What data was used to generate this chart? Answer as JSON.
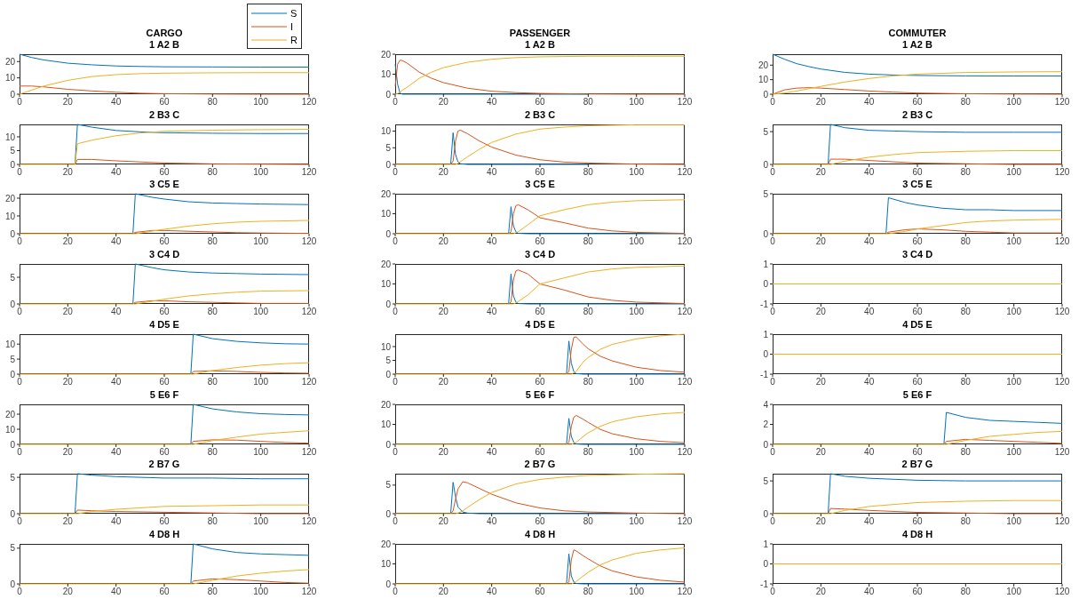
{
  "chart_data": [
    {
      "type": "line",
      "title": "CARGO",
      "subtitle": "1 A2 B",
      "legend": "top right",
      "x": [
        0,
        5,
        10,
        20,
        30,
        40,
        50,
        60,
        80,
        100,
        120
      ],
      "xlim": [
        0,
        120
      ],
      "xticks": [
        0,
        20,
        40,
        60,
        80,
        100,
        120
      ],
      "ylim": [
        0,
        24.5
      ],
      "yticks": [
        0,
        10,
        20
      ],
      "series": [
        {
          "name": "S",
          "color": "#0072bd",
          "values": [
            24.5,
            22.5,
            21,
            19,
            18,
            17.3,
            17,
            16.8,
            16.7,
            16.6,
            16.6
          ]
        },
        {
          "name": "I",
          "color": "#d95319",
          "values": [
            5,
            5,
            4.5,
            3,
            2,
            1.2,
            0.6,
            0.3,
            0.1,
            0,
            0
          ]
        },
        {
          "name": "R",
          "color": "#edb120",
          "values": [
            0,
            2.5,
            5,
            8.5,
            10.8,
            12,
            12.6,
            12.9,
            13.1,
            13.2,
            13.2
          ]
        }
      ]
    },
    {
      "type": "line",
      "title": "PASSENGER",
      "subtitle": "1 A2 B",
      "x": [
        0,
        1,
        2,
        3,
        5,
        10,
        15,
        20,
        30,
        40,
        50,
        60,
        80,
        100,
        120
      ],
      "xlim": [
        0,
        120
      ],
      "xticks": [
        0,
        20,
        40,
        60,
        80,
        100,
        120
      ],
      "ylim": [
        0,
        20
      ],
      "yticks": [
        0,
        10,
        20
      ],
      "series": [
        {
          "color": "#0072bd",
          "values": [
            15,
            5,
            0.5,
            0,
            0,
            0,
            0,
            0,
            0,
            0,
            0,
            0,
            0,
            null,
            null
          ]
        },
        {
          "color": "#d95319",
          "values": [
            4,
            15,
            17,
            16.8,
            15.5,
            11,
            8,
            5.8,
            3,
            1.5,
            0.8,
            0.4,
            0.1,
            0,
            0
          ]
        },
        {
          "color": "#edb120",
          "values": [
            0,
            0.3,
            1,
            2,
            3.5,
            8,
            11,
            13.3,
            16,
            17.5,
            18.3,
            18.7,
            19,
            19,
            19
          ]
        }
      ]
    },
    {
      "type": "line",
      "title": "COMMUTER",
      "subtitle": "1 A2 B",
      "x": [
        0,
        5,
        10,
        15,
        20,
        30,
        40,
        50,
        60,
        80,
        100,
        120
      ],
      "xlim": [
        0,
        120
      ],
      "xticks": [
        0,
        20,
        40,
        60,
        80,
        100,
        120
      ],
      "ylim": [
        0,
        27.5
      ],
      "yticks": [
        0,
        10,
        20
      ],
      "series": [
        {
          "color": "#0072bd",
          "values": [
            27.5,
            24,
            21,
            19,
            17.3,
            15,
            13.8,
            13.2,
            12.9,
            12.6,
            12.5,
            12.5
          ]
        },
        {
          "color": "#d95319",
          "values": [
            0,
            3,
            4.2,
            4.5,
            4.2,
            3.2,
            2.2,
            1.4,
            0.8,
            0.3,
            0.1,
            0
          ]
        },
        {
          "color": "#edb120",
          "values": [
            0,
            0.8,
            2.2,
            3.8,
            5.4,
            8.4,
            10.8,
            12.6,
            13.8,
            14.9,
            15.3,
            15.5
          ]
        }
      ]
    },
    {
      "type": "line",
      "title": "2 B3 C",
      "x": [
        0,
        23,
        24,
        30,
        40,
        50,
        60,
        80,
        100,
        120
      ],
      "xlim": [
        0,
        120
      ],
      "xticks": [
        0,
        20,
        40,
        60,
        80,
        100,
        120
      ],
      "ylim": [
        0,
        14.5
      ],
      "yticks": [
        0,
        5,
        10
      ],
      "series": [
        {
          "color": "#0072bd",
          "values": [
            null,
            0,
            14.5,
            13.5,
            12.3,
            11.8,
            11.5,
            11.3,
            11.2,
            11.2
          ]
        },
        {
          "color": "#d95319",
          "values": [
            null,
            0,
            1.8,
            1.8,
            1.3,
            0.9,
            0.5,
            0.2,
            0.1,
            0
          ]
        },
        {
          "color": "#edb120",
          "values": [
            0,
            0,
            7.5,
            8.8,
            10.4,
            11.4,
            12,
            12.4,
            12.6,
            12.7
          ]
        }
      ]
    },
    {
      "type": "line",
      "title": "2 B3 C",
      "x": [
        0,
        23,
        24,
        25,
        26,
        27,
        30,
        35,
        40,
        50,
        60,
        70,
        80,
        100,
        120
      ],
      "xlim": [
        0,
        120
      ],
      "xticks": [
        0,
        20,
        40,
        60,
        80,
        100,
        120
      ],
      "ylim": [
        0,
        12
      ],
      "yticks": [
        0,
        5,
        10
      ],
      "series": [
        {
          "color": "#0072bd",
          "values": [
            null,
            0,
            9.5,
            3,
            0.8,
            0.2,
            0,
            0,
            0,
            0,
            0,
            0,
            0,
            null,
            null
          ]
        },
        {
          "color": "#d95319",
          "values": [
            null,
            0,
            1,
            7,
            10,
            10.3,
            9.2,
            7,
            5.2,
            2.8,
            1.4,
            0.7,
            0.4,
            0.1,
            0
          ]
        },
        {
          "color": "#edb120",
          "values": [
            0,
            0,
            0,
            0,
            0.3,
            0.8,
            2.3,
            4.6,
            6.6,
            9.1,
            10.6,
            11.2,
            11.6,
            11.9,
            11.9
          ]
        }
      ]
    },
    {
      "type": "line",
      "title": "2 B3 C",
      "x": [
        0,
        23,
        24,
        30,
        40,
        50,
        60,
        80,
        100,
        120
      ],
      "xlim": [
        0,
        120
      ],
      "xticks": [
        0,
        20,
        40,
        60,
        80,
        100,
        120
      ],
      "ylim": [
        0,
        6.1
      ],
      "yticks": [
        0,
        5
      ],
      "series": [
        {
          "color": "#0072bd",
          "values": [
            null,
            0,
            6.1,
            5.6,
            5.2,
            5.1,
            5,
            4.9,
            4.9,
            4.9
          ]
        },
        {
          "color": "#d95319",
          "values": [
            null,
            0,
            0.8,
            0.8,
            0.6,
            0.4,
            0.2,
            0.1,
            0,
            0
          ]
        },
        {
          "color": "#edb120",
          "values": [
            0,
            0,
            0,
            0.5,
            1.1,
            1.5,
            1.8,
            2,
            2.1,
            2.1
          ]
        }
      ]
    },
    {
      "type": "line",
      "title": "3 C5 E",
      "x": [
        0,
        47,
        48,
        55,
        60,
        70,
        80,
        90,
        100,
        120
      ],
      "xlim": [
        0,
        120
      ],
      "xticks": [
        0,
        20,
        40,
        60,
        80,
        100,
        120
      ],
      "ylim": [
        0,
        22.5
      ],
      "yticks": [
        0,
        10,
        20
      ],
      "series": [
        {
          "color": "#0072bd",
          "values": [
            null,
            0,
            22.5,
            20.5,
            19.5,
            18,
            17.3,
            17,
            16.7,
            16.4
          ]
        },
        {
          "color": "#d95319",
          "values": [
            null,
            0,
            0.8,
            1.8,
            1.8,
            1.4,
            1,
            0.6,
            0.4,
            0.2
          ]
        },
        {
          "color": "#edb120",
          "values": [
            0,
            0,
            0,
            1.5,
            2.5,
            4.3,
            5.6,
            6.5,
            7,
            7.5
          ]
        }
      ]
    },
    {
      "type": "line",
      "title": "3 C5 E",
      "x": [
        0,
        47,
        48,
        49,
        50,
        51,
        55,
        60,
        70,
        80,
        90,
        100,
        120
      ],
      "xlim": [
        0,
        120
      ],
      "xticks": [
        0,
        20,
        40,
        60,
        80,
        100,
        120
      ],
      "ylim": [
        0,
        20
      ],
      "yticks": [
        0,
        10,
        20
      ],
      "series": [
        {
          "color": "#0072bd",
          "values": [
            null,
            0,
            13.5,
            4,
            1,
            0.2,
            0,
            0,
            0,
            0,
            0,
            0,
            0
          ]
        },
        {
          "color": "#d95319",
          "values": [
            null,
            0,
            1,
            10,
            14,
            14.5,
            12,
            8,
            5.5,
            2.8,
            1.4,
            0.7,
            0.2
          ]
        },
        {
          "color": "#edb120",
          "values": [
            0,
            0,
            0,
            0,
            0.5,
            1,
            4.5,
            9,
            12,
            14.5,
            15.8,
            16.5,
            17
          ]
        }
      ]
    },
    {
      "type": "line",
      "title": "3 C5 E",
      "x": [
        0,
        47,
        48,
        55,
        60,
        70,
        80,
        90,
        100,
        120
      ],
      "xlim": [
        0,
        120
      ],
      "xticks": [
        0,
        20,
        40,
        60,
        80,
        100,
        120
      ],
      "ylim": [
        0,
        5
      ],
      "yticks": [
        0,
        5
      ],
      "series": [
        {
          "color": "#0072bd",
          "values": [
            null,
            0,
            4.5,
            3.9,
            3.6,
            3.2,
            3,
            3,
            2.9,
            2.9
          ]
        },
        {
          "color": "#d95319",
          "values": [
            null,
            0,
            0.2,
            0.5,
            0.6,
            0.5,
            0.3,
            0.2,
            0.1,
            0.1
          ]
        },
        {
          "color": "#edb120",
          "values": [
            0,
            0,
            0,
            0.3,
            0.6,
            1,
            1.4,
            1.6,
            1.7,
            1.8
          ]
        }
      ]
    },
    {
      "type": "line",
      "title": "3 C4 D",
      "x": [
        0,
        47,
        48,
        55,
        60,
        70,
        80,
        90,
        100,
        120
      ],
      "xlim": [
        0,
        120
      ],
      "xticks": [
        0,
        20,
        40,
        60,
        80,
        100,
        120
      ],
      "ylim": [
        0,
        7.5
      ],
      "yticks": [
        0,
        5
      ],
      "series": [
        {
          "color": "#0072bd",
          "values": [
            null,
            0,
            7.5,
            6.8,
            6.4,
            6,
            5.8,
            5.7,
            5.6,
            5.5
          ]
        },
        {
          "color": "#d95319",
          "values": [
            null,
            0,
            0.3,
            0.6,
            0.6,
            0.4,
            0.3,
            0.2,
            0.1,
            0.1
          ]
        },
        {
          "color": "#edb120",
          "values": [
            0,
            0,
            0,
            0.5,
            0.9,
            1.5,
            1.9,
            2.2,
            2.4,
            2.5
          ]
        }
      ]
    },
    {
      "type": "line",
      "title": "3 C4 D",
      "x": [
        0,
        47,
        48,
        49,
        50,
        51,
        55,
        60,
        70,
        80,
        90,
        100,
        120
      ],
      "xlim": [
        0,
        120
      ],
      "xticks": [
        0,
        20,
        40,
        60,
        80,
        100,
        120
      ],
      "ylim": [
        0,
        20
      ],
      "yticks": [
        0,
        10,
        20
      ],
      "series": [
        {
          "color": "#0072bd",
          "values": [
            null,
            0,
            15,
            4,
            1,
            0.2,
            0,
            0,
            0,
            0,
            0,
            0,
            0
          ]
        },
        {
          "color": "#d95319",
          "values": [
            null,
            0,
            1,
            12,
            16.5,
            17,
            15,
            10,
            7,
            3.5,
            1.8,
            0.9,
            0.2
          ]
        },
        {
          "color": "#edb120",
          "values": [
            0,
            0,
            0,
            0,
            0.5,
            1.2,
            4.5,
            10,
            13,
            16,
            17.5,
            18.3,
            19
          ]
        }
      ]
    },
    {
      "type": "line",
      "title": "3 C4 D",
      "x": [
        0,
        120
      ],
      "xlim": [
        0,
        120
      ],
      "xticks": [
        0,
        20,
        40,
        60,
        80,
        100,
        120
      ],
      "ylim": [
        -1,
        1
      ],
      "yticks": [
        -1,
        0,
        1
      ],
      "series": [
        {
          "color": "#0072bd",
          "values": [
            null,
            null
          ]
        },
        {
          "color": "#d95319",
          "values": [
            null,
            null
          ]
        },
        {
          "color": "#edb120",
          "values": [
            0,
            0
          ]
        }
      ]
    },
    {
      "type": "line",
      "title": "4 D5 E",
      "x": [
        0,
        71,
        72,
        80,
        90,
        100,
        110,
        120
      ],
      "xlim": [
        0,
        120
      ],
      "xticks": [
        0,
        20,
        40,
        60,
        80,
        100,
        120
      ],
      "ylim": [
        0,
        13.3
      ],
      "yticks": [
        0,
        5,
        10
      ],
      "series": [
        {
          "color": "#0072bd",
          "values": [
            null,
            0,
            13.3,
            11.8,
            10.9,
            10.4,
            10.1,
            10
          ]
        },
        {
          "color": "#d95319",
          "values": [
            null,
            0,
            0.9,
            1.1,
            0.9,
            0.6,
            0.4,
            0.3
          ]
        },
        {
          "color": "#edb120",
          "values": [
            0,
            0,
            0,
            1.2,
            2.2,
            3,
            3.5,
            3.8
          ]
        }
      ]
    },
    {
      "type": "line",
      "title": "4 D5 E",
      "x": [
        0,
        71,
        72,
        73,
        74,
        75,
        78,
        80,
        85,
        90,
        100,
        110,
        120
      ],
      "xlim": [
        0,
        120
      ],
      "xticks": [
        0,
        20,
        40,
        60,
        80,
        100,
        120
      ],
      "ylim": [
        0,
        14.5
      ],
      "yticks": [
        0,
        5,
        10
      ],
      "series": [
        {
          "color": "#0072bd",
          "values": [
            null,
            0,
            12,
            4,
            1,
            0.2,
            0,
            0,
            0,
            0,
            0,
            0,
            0
          ]
        },
        {
          "color": "#d95319",
          "values": [
            null,
            0,
            1,
            9,
            13.3,
            13.5,
            10.8,
            9.2,
            6.5,
            4.8,
            2.5,
            1.3,
            0.7
          ]
        },
        {
          "color": "#edb120",
          "values": [
            0,
            0,
            0,
            0,
            0.5,
            1,
            4.5,
            6,
            9,
            10.8,
            12.8,
            13.9,
            14.5
          ]
        }
      ]
    },
    {
      "type": "line",
      "title": "4 D5 E",
      "x": [
        0,
        120
      ],
      "xlim": [
        0,
        120
      ],
      "xticks": [
        0,
        20,
        40,
        60,
        80,
        100,
        120
      ],
      "ylim": [
        -1,
        1
      ],
      "yticks": [
        -1,
        0,
        1
      ],
      "series": [
        {
          "color": "#0072bd",
          "values": [
            null,
            null
          ]
        },
        {
          "color": "#d95319",
          "values": [
            null,
            null
          ]
        },
        {
          "color": "#edb120",
          "values": [
            0,
            0
          ]
        }
      ]
    },
    {
      "type": "line",
      "title": "5 E6 F",
      "x": [
        0,
        71,
        72,
        80,
        90,
        100,
        110,
        120
      ],
      "xlim": [
        0,
        120
      ],
      "xticks": [
        0,
        20,
        40,
        60,
        80,
        100,
        120
      ],
      "ylim": [
        0,
        26.5
      ],
      "yticks": [
        0,
        10,
        20
      ],
      "series": [
        {
          "color": "#0072bd",
          "values": [
            null,
            0,
            26.5,
            23.5,
            21.5,
            20.3,
            19.8,
            19.5
          ]
        },
        {
          "color": "#d95319",
          "values": [
            null,
            0,
            2,
            3,
            2.8,
            2,
            1.2,
            0.8
          ]
        },
        {
          "color": "#edb120",
          "values": [
            0,
            0,
            0,
            2.5,
            4.8,
            6.8,
            8,
            9
          ]
        }
      ]
    },
    {
      "type": "line",
      "title": "5 E6 F",
      "x": [
        0,
        71,
        72,
        73,
        74,
        75,
        78,
        80,
        85,
        90,
        100,
        110,
        120
      ],
      "xlim": [
        0,
        120
      ],
      "xticks": [
        0,
        20,
        40,
        60,
        80,
        100,
        120
      ],
      "ylim": [
        0,
        20
      ],
      "yticks": [
        0,
        10,
        20
      ],
      "series": [
        {
          "color": "#0072bd",
          "values": [
            null,
            0,
            13,
            4,
            1,
            0.2,
            0,
            0,
            0,
            0,
            0,
            0,
            0
          ]
        },
        {
          "color": "#d95319",
          "values": [
            null,
            0,
            1,
            9,
            13.5,
            14.5,
            12.5,
            11,
            7.5,
            5.3,
            2.8,
            1.5,
            0.8
          ]
        },
        {
          "color": "#edb120",
          "values": [
            0,
            0,
            0,
            0,
            0.5,
            1,
            4,
            5.8,
            9,
            11.3,
            13.8,
            15.2,
            16
          ]
        }
      ]
    },
    {
      "type": "line",
      "title": "5 E6 F",
      "x": [
        0,
        71,
        72,
        80,
        90,
        100,
        110,
        120
      ],
      "xlim": [
        0,
        120
      ],
      "xticks": [
        0,
        20,
        40,
        60,
        80,
        100,
        120
      ],
      "ylim": [
        0,
        4
      ],
      "yticks": [
        0,
        2,
        4
      ],
      "series": [
        {
          "color": "#0072bd",
          "values": [
            null,
            0,
            3.2,
            2.7,
            2.4,
            2.3,
            2.2,
            2.1
          ]
        },
        {
          "color": "#d95319",
          "values": [
            null,
            0,
            0.3,
            0.5,
            0.4,
            0.3,
            0.2,
            0.1
          ]
        },
        {
          "color": "#edb120",
          "values": [
            0,
            0,
            0,
            0.4,
            0.8,
            1,
            1.2,
            1.3
          ]
        }
      ]
    },
    {
      "type": "line",
      "title": "2 B7 G",
      "x": [
        0,
        23,
        24,
        30,
        40,
        60,
        80,
        100,
        120
      ],
      "xlim": [
        0,
        120
      ],
      "xticks": [
        0,
        20,
        40,
        60,
        80,
        100,
        120
      ],
      "ylim": [
        0,
        5.5
      ],
      "yticks": [
        0,
        5
      ],
      "series": [
        {
          "color": "#0072bd",
          "values": [
            null,
            0,
            5.5,
            5.3,
            5.1,
            4.9,
            4.9,
            4.8,
            4.8
          ]
        },
        {
          "color": "#d95319",
          "values": [
            null,
            0,
            0.5,
            0.4,
            0.3,
            0.2,
            0.1,
            0,
            0
          ]
        },
        {
          "color": "#edb120",
          "values": [
            0,
            0,
            0,
            0.3,
            0.6,
            1,
            1.1,
            1.2,
            1.2
          ]
        }
      ]
    },
    {
      "type": "line",
      "title": "2 B7 G",
      "x": [
        0,
        23,
        24,
        25,
        26,
        28,
        30,
        35,
        40,
        50,
        60,
        70,
        80,
        100,
        120
      ],
      "xlim": [
        0,
        120
      ],
      "xticks": [
        0,
        20,
        40,
        60,
        80,
        100,
        120
      ],
      "ylim": [
        0,
        7
      ],
      "yticks": [
        0,
        5
      ],
      "series": [
        {
          "color": "#0072bd",
          "values": [
            null,
            0,
            5.5,
            3,
            1.2,
            0.3,
            0.1,
            0,
            0,
            0,
            0,
            0,
            0,
            0,
            null
          ]
        },
        {
          "color": "#d95319",
          "values": [
            null,
            0,
            0.5,
            2.5,
            4.3,
            5.6,
            5.4,
            4.4,
            3.4,
            1.9,
            1,
            0.5,
            0.3,
            0.1,
            0
          ]
        },
        {
          "color": "#edb120",
          "values": [
            0,
            0,
            0,
            0,
            0.1,
            0.5,
            1.1,
            2.5,
            3.7,
            5.2,
            6,
            6.4,
            6.7,
            6.9,
            7
          ]
        }
      ]
    },
    {
      "type": "line",
      "title": "2 B7 G",
      "x": [
        0,
        23,
        24,
        30,
        40,
        60,
        80,
        100,
        120
      ],
      "xlim": [
        0,
        120
      ],
      "xticks": [
        0,
        20,
        40,
        60,
        80,
        100,
        120
      ],
      "ylim": [
        0,
        6.1
      ],
      "yticks": [
        0,
        5
      ],
      "series": [
        {
          "color": "#0072bd",
          "values": [
            null,
            0,
            6.1,
            5.7,
            5.4,
            5.1,
            5,
            5,
            5
          ]
        },
        {
          "color": "#d95319",
          "values": [
            null,
            0,
            0.8,
            0.7,
            0.5,
            0.2,
            0.1,
            0,
            0
          ]
        },
        {
          "color": "#edb120",
          "values": [
            0,
            0,
            0,
            0.5,
            1.1,
            1.7,
            1.9,
            2,
            2
          ]
        }
      ]
    },
    {
      "type": "line",
      "title": "4 D8 H",
      "x": [
        0,
        71,
        72,
        80,
        90,
        100,
        110,
        120
      ],
      "xlim": [
        0,
        120
      ],
      "xticks": [
        0,
        20,
        40,
        60,
        80,
        100,
        120
      ],
      "ylim": [
        0,
        5.6
      ],
      "yticks": [
        0,
        5
      ],
      "series": [
        {
          "color": "#0072bd",
          "values": [
            null,
            0,
            5.6,
            4.9,
            4.4,
            4.2,
            4.1,
            4
          ]
        },
        {
          "color": "#d95319",
          "values": [
            null,
            0,
            0.4,
            0.7,
            0.6,
            0.4,
            0.2,
            0.1
          ]
        },
        {
          "color": "#edb120",
          "values": [
            0,
            0,
            0,
            0.5,
            1.1,
            1.5,
            1.8,
            2
          ]
        }
      ]
    },
    {
      "type": "line",
      "title": "4 D8 H",
      "x": [
        0,
        71,
        72,
        73,
        74,
        75,
        78,
        80,
        85,
        90,
        100,
        110,
        120
      ],
      "xlim": [
        0,
        120
      ],
      "xticks": [
        0,
        20,
        40,
        60,
        80,
        100,
        120
      ],
      "ylim": [
        0,
        20
      ],
      "yticks": [
        0,
        10,
        20
      ],
      "series": [
        {
          "color": "#0072bd",
          "values": [
            null,
            0,
            15,
            4,
            1,
            0.2,
            0,
            0,
            0,
            0,
            0,
            0,
            0
          ]
        },
        {
          "color": "#d95319",
          "values": [
            null,
            0,
            1,
            12,
            17,
            16.5,
            14,
            12.5,
            9,
            6.5,
            3.5,
            1.8,
            0.9
          ]
        },
        {
          "color": "#edb120",
          "values": [
            0,
            0,
            0,
            0,
            0.5,
            1.2,
            4,
            5.8,
            9.5,
            12,
            15.3,
            17,
            18
          ]
        }
      ]
    },
    {
      "type": "line",
      "title": "4 D8 H",
      "x": [
        0,
        120
      ],
      "xlim": [
        0,
        120
      ],
      "xticks": [
        0,
        20,
        40,
        60,
        80,
        100,
        120
      ],
      "ylim": [
        -1,
        1
      ],
      "yticks": [
        -1,
        0,
        1
      ],
      "series": [
        {
          "color": "#0072bd",
          "values": [
            null,
            null
          ]
        },
        {
          "color": "#d95319",
          "values": [
            null,
            null
          ]
        },
        {
          "color": "#edb120",
          "values": [
            0,
            0
          ]
        }
      ]
    }
  ]
}
